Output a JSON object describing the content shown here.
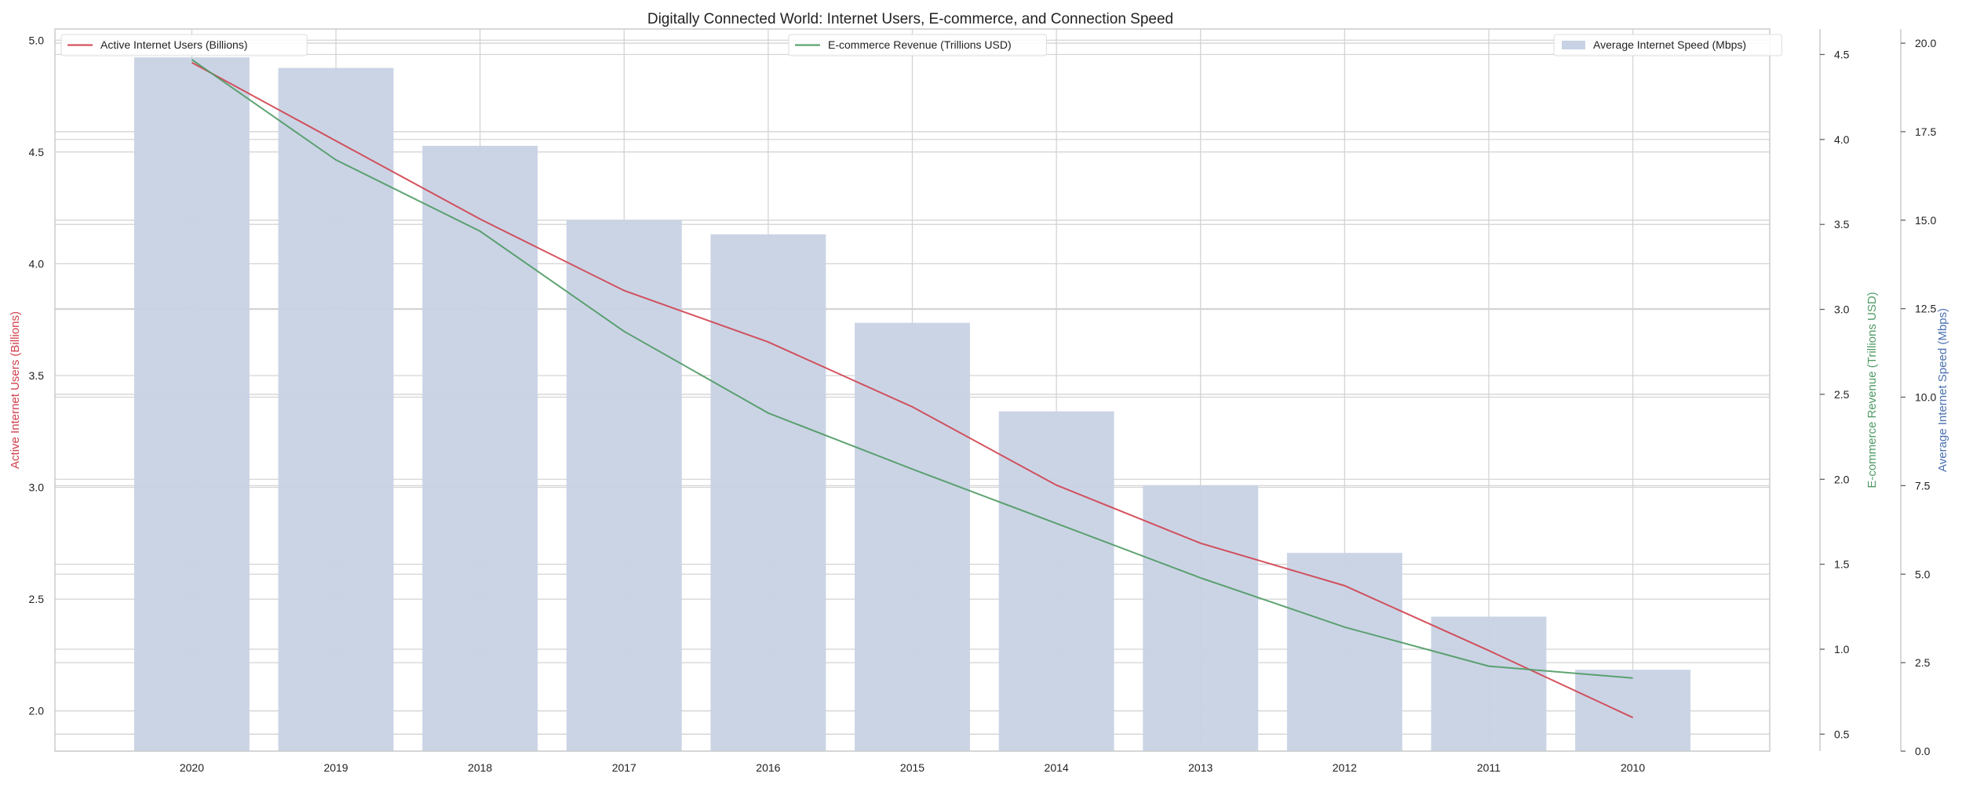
{
  "chart_data": {
    "type": "bar",
    "title": "Digitally Connected World: Internet Users, E-commerce, and Connection Speed",
    "categories": [
      "2020",
      "2019",
      "2018",
      "2017",
      "2016",
      "2015",
      "2014",
      "2013",
      "2012",
      "2011",
      "2010"
    ],
    "axes": {
      "y_left": {
        "label": "Active Internet Users (Billions)",
        "color": "#d0414e",
        "range": [
          1.82,
          5.05
        ],
        "ticks": [
          "2.0",
          "2.5",
          "3.0",
          "3.5",
          "4.0",
          "4.5",
          "5.0"
        ]
      },
      "y_right1": {
        "label": "E-commerce Revenue (Trillions USD)",
        "color": "#4e9a64",
        "range": [
          0.4,
          4.65
        ],
        "ticks": [
          "0.5",
          "1.0",
          "1.5",
          "2.0",
          "2.5",
          "3.0",
          "3.5",
          "4.0",
          "4.5"
        ]
      },
      "y_right2": {
        "label": "Average Internet Speed (Mbps)",
        "color": "#4c72b0",
        "range": [
          0,
          20.4
        ],
        "ticks": [
          "0.0",
          "2.5",
          "5.0",
          "7.5",
          "10.0",
          "12.5",
          "15.0",
          "17.5",
          "20.0"
        ]
      }
    },
    "series": [
      {
        "name": "Average Internet Speed (Mbps)",
        "type": "bar",
        "axis": "y_right2",
        "color": "#c8d2e4",
        "values": [
          19.6,
          19.3,
          17.1,
          15.0,
          14.6,
          12.1,
          9.6,
          7.5,
          5.6,
          3.8,
          2.3
        ]
      },
      {
        "name": "Active Internet Users (Billions)",
        "type": "line",
        "axis": "y_left",
        "color": "#d0414e",
        "values": [
          4.9,
          4.55,
          4.2,
          3.88,
          3.65,
          3.36,
          3.01,
          2.75,
          2.56,
          2.27,
          1.97
        ]
      },
      {
        "name": "E-commerce Revenue (Trillions USD)",
        "type": "line",
        "axis": "y_right1",
        "color": "#4e9a64",
        "values": [
          4.47,
          3.88,
          3.46,
          2.87,
          2.39,
          2.06,
          1.74,
          1.42,
          1.13,
          0.9,
          0.83
        ]
      }
    ],
    "legends": [
      {
        "label": "Active Internet Users (Billions)",
        "placement": "top-left"
      },
      {
        "label": "E-commerce Revenue (Trillions USD)",
        "placement": "top-center"
      },
      {
        "label": "Average Internet Speed (Mbps)",
        "placement": "top-right"
      }
    ],
    "grid": true
  }
}
